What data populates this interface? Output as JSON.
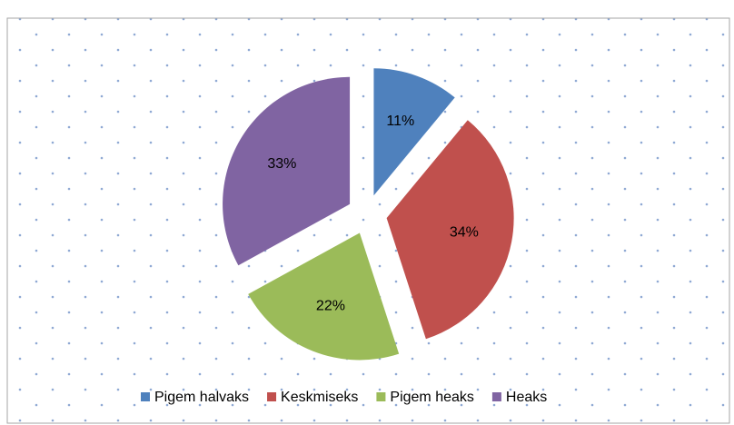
{
  "chart_data": {
    "type": "pie",
    "categories": [
      "Pigem halvaks",
      "Keskmiseks",
      "Pigem heaks",
      "Heaks"
    ],
    "values": [
      11,
      34,
      22,
      33
    ],
    "value_labels": [
      "11%",
      "34%",
      "22%",
      "33%"
    ],
    "colors": [
      "#4f81bd",
      "#c0504d",
      "#9bbb59",
      "#8064a2"
    ],
    "legend": "bottom"
  }
}
